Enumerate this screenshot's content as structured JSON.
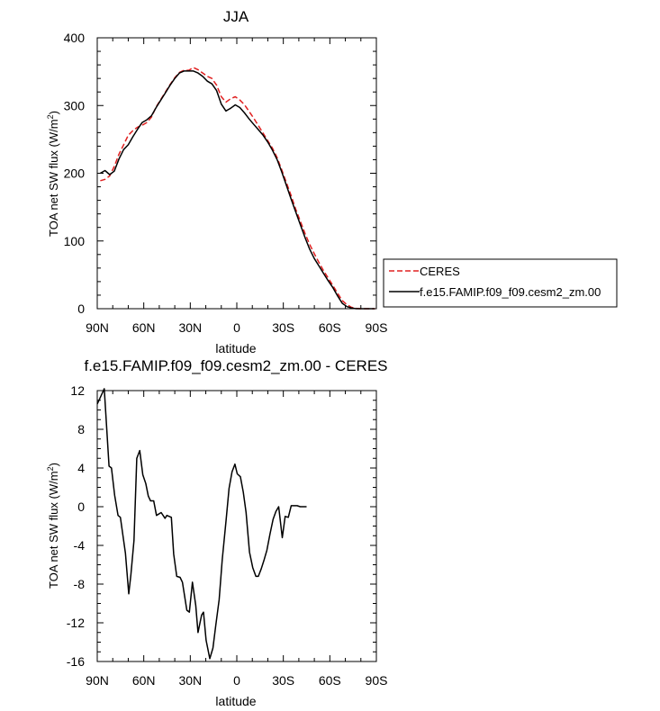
{
  "chart_data": [
    {
      "type": "line",
      "title": "JJA",
      "xlabel": "latitude",
      "ylabel_main": "TOA net SW flux (W/m",
      "ylabel_sup": "2",
      "ylabel_tail": ")",
      "xlim": [
        90,
        -90
      ],
      "ylim": [
        0,
        400
      ],
      "x_ticks": [
        {
          "v": 90,
          "label": "90N"
        },
        {
          "v": 60,
          "label": "60N"
        },
        {
          "v": 30,
          "label": "30N"
        },
        {
          "v": 0,
          "label": "0"
        },
        {
          "v": -30,
          "label": "30S"
        },
        {
          "v": -60,
          "label": "60S"
        },
        {
          "v": -90,
          "label": "90S"
        }
      ],
      "y_ticks": [
        {
          "v": 0,
          "label": "0"
        },
        {
          "v": 100,
          "label": "100"
        },
        {
          "v": 200,
          "label": "200"
        },
        {
          "v": 300,
          "label": "300"
        },
        {
          "v": 400,
          "label": "400"
        }
      ],
      "legend_position": "right-of-plot",
      "series": [
        {
          "name": "CERES",
          "color": "#e02020",
          "dash": "dashed",
          "points": [
            [
              88,
              189
            ],
            [
              85,
              191
            ],
            [
              82,
              196
            ],
            [
              79,
              210
            ],
            [
              76,
              228
            ],
            [
              73,
              242
            ],
            [
              70,
              256
            ],
            [
              67,
              263
            ],
            [
              64,
              268
            ],
            [
              61,
              271
            ],
            [
              58,
              275
            ],
            [
              55,
              283
            ],
            [
              52,
              298
            ],
            [
              49,
              309
            ],
            [
              46,
              320
            ],
            [
              43,
              331
            ],
            [
              40,
              341
            ],
            [
              37,
              349
            ],
            [
              34,
              352
            ],
            [
              31,
              352
            ],
            [
              28,
              356
            ],
            [
              25,
              353
            ],
            [
              22,
              348
            ],
            [
              19,
              343
            ],
            [
              16,
              340
            ],
            [
              13,
              330
            ],
            [
              10,
              313
            ],
            [
              7,
              305
            ],
            [
              4,
              310
            ],
            [
              1,
              313
            ],
            [
              -2,
              308
            ],
            [
              -5,
              301
            ],
            [
              -8,
              291
            ],
            [
              -11,
              281
            ],
            [
              -14,
              270
            ],
            [
              -17,
              259
            ],
            [
              -20,
              248
            ],
            [
              -23,
              237
            ],
            [
              -26,
              223
            ],
            [
              -29,
              205
            ],
            [
              -32,
              186
            ],
            [
              -35,
              167
            ],
            [
              -38,
              147
            ],
            [
              -41,
              129
            ],
            [
              -44,
              111
            ],
            [
              -47,
              95
            ],
            [
              -50,
              81
            ],
            [
              -53,
              68
            ],
            [
              -56,
              56
            ],
            [
              -59,
              45
            ],
            [
              -62,
              34
            ],
            [
              -65,
              23
            ],
            [
              -68,
              12
            ],
            [
              -71,
              6
            ],
            [
              -74,
              2
            ],
            [
              -77,
              0.5
            ],
            [
              -80,
              0
            ],
            [
              -83,
              0
            ],
            [
              -86,
              0
            ],
            [
              -89,
              0
            ]
          ]
        },
        {
          "name": "f.e15.FAMIP.f09_f09.cesm2_zm.00",
          "color": "#000000",
          "dash": "solid",
          "points": [
            [
              88,
              200
            ],
            [
              85,
              204
            ],
            [
              82,
              198
            ],
            [
              79,
              203
            ],
            [
              76,
              221
            ],
            [
              73,
              235
            ],
            [
              70,
              242
            ],
            [
              67,
              254
            ],
            [
              64,
              265
            ],
            [
              61,
              275
            ],
            [
              58,
              279
            ],
            [
              55,
              285
            ],
            [
              52,
              297
            ],
            [
              49,
              308
            ],
            [
              46,
              319
            ],
            [
              43,
              330
            ],
            [
              40,
              340
            ],
            [
              37,
              348
            ],
            [
              34,
              351
            ],
            [
              31,
              351
            ],
            [
              28,
              351
            ],
            [
              25,
              348
            ],
            [
              22,
              343
            ],
            [
              19,
              336
            ],
            [
              16,
              332
            ],
            [
              13,
              322
            ],
            [
              10,
              302
            ],
            [
              7,
              292
            ],
            [
              4,
              296
            ],
            [
              1,
              301
            ],
            [
              -2,
              297
            ],
            [
              -5,
              289
            ],
            [
              -8,
              280
            ],
            [
              -11,
              272
            ],
            [
              -14,
              264
            ],
            [
              -17,
              256
            ],
            [
              -20,
              246
            ],
            [
              -23,
              234
            ],
            [
              -26,
              220
            ],
            [
              -29,
              202
            ],
            [
              -32,
              182
            ],
            [
              -35,
              162
            ],
            [
              -38,
              143
            ],
            [
              -41,
              124
            ],
            [
              -44,
              105
            ],
            [
              -47,
              88
            ],
            [
              -50,
              74
            ],
            [
              -53,
              63
            ],
            [
              -56,
              52
            ],
            [
              -59,
              41
            ],
            [
              -62,
              31
            ],
            [
              -65,
              19
            ],
            [
              -68,
              8
            ],
            [
              -71,
              3
            ],
            [
              -74,
              1
            ],
            [
              -77,
              0
            ],
            [
              -80,
              0
            ],
            [
              -83,
              0
            ],
            [
              -86,
              0
            ],
            [
              -89,
              0
            ]
          ]
        }
      ]
    },
    {
      "type": "line",
      "title": "f.e15.FAMIP.f09_f09.cesm2_zm.00 - CERES",
      "xlabel": "latitude",
      "ylabel_main": "TOA net SW flux (W/m",
      "ylabel_sup": "2",
      "ylabel_tail": ")",
      "xlim": [
        90,
        -90
      ],
      "ylim": [
        -16,
        12
      ],
      "x_ticks": [
        {
          "v": 90,
          "label": "90N"
        },
        {
          "v": 60,
          "label": "60N"
        },
        {
          "v": 30,
          "label": "30N"
        },
        {
          "v": 0,
          "label": "0"
        },
        {
          "v": -30,
          "label": "30S"
        },
        {
          "v": -60,
          "label": "60S"
        },
        {
          "v": -90,
          "label": "90S"
        }
      ],
      "y_ticks": [
        {
          "v": -16,
          "label": "-16"
        },
        {
          "v": -12,
          "label": "-12"
        },
        {
          "v": -8,
          "label": "-8"
        },
        {
          "v": -4,
          "label": "-4"
        },
        {
          "v": 0,
          "label": "0"
        },
        {
          "v": 4,
          "label": "4"
        },
        {
          "v": 8,
          "label": "8"
        },
        {
          "v": 12,
          "label": "12"
        }
      ],
      "series": [
        {
          "name": "",
          "color": "#000000",
          "dash": "solid",
          "points": [
            [
              90,
              10.6
            ],
            [
              85.5,
              12.2
            ],
            [
              82.4,
              4.2
            ],
            [
              80.8,
              4.0
            ],
            [
              78.8,
              1.2
            ],
            [
              76.6,
              -0.9
            ],
            [
              75.1,
              -1.1
            ],
            [
              71.8,
              -4.8
            ],
            [
              69.7,
              -9.0
            ],
            [
              68.3,
              -7.0
            ],
            [
              66.3,
              -3.5
            ],
            [
              64.5,
              5.0
            ],
            [
              62.6,
              5.8
            ],
            [
              60.6,
              3.3
            ],
            [
              58.7,
              2.4
            ],
            [
              57.1,
              1.1
            ],
            [
              55.6,
              0.6
            ],
            [
              53.6,
              0.6
            ],
            [
              51.8,
              -0.9
            ],
            [
              48.8,
              -0.6
            ],
            [
              46.3,
              -1.2
            ],
            [
              45.1,
              -0.9
            ],
            [
              42.2,
              -1.1
            ],
            [
              40.7,
              -4.9
            ],
            [
              38.7,
              -7.2
            ],
            [
              36.6,
              -7.3
            ],
            [
              35.1,
              -7.8
            ],
            [
              32.2,
              -10.7
            ],
            [
              30.6,
              -10.9
            ],
            [
              28.6,
              -7.8
            ],
            [
              26.5,
              -10.2
            ],
            [
              25.0,
              -13.0
            ],
            [
              22.7,
              -11.2
            ],
            [
              21.5,
              -10.9
            ],
            [
              19.8,
              -13.8
            ],
            [
              17.4,
              -15.7
            ],
            [
              15.4,
              -14.6
            ],
            [
              13.6,
              -12.3
            ],
            [
              11.4,
              -9.6
            ],
            [
              9.4,
              -5.5
            ],
            [
              6.9,
              -1.4
            ],
            [
              5.0,
              1.9
            ],
            [
              3.1,
              3.6
            ],
            [
              1.2,
              4.4
            ],
            [
              -0.3,
              3.4
            ],
            [
              -2.3,
              3.1
            ],
            [
              -4.2,
              1.5
            ],
            [
              -6.0,
              -0.6
            ],
            [
              -8.2,
              -4.7
            ],
            [
              -10.3,
              -6.3
            ],
            [
              -12.3,
              -7.2
            ],
            [
              -13.9,
              -7.2
            ],
            [
              -15.8,
              -6.4
            ],
            [
              -17.6,
              -5.5
            ],
            [
              -19.4,
              -4.5
            ],
            [
              -21.4,
              -2.8
            ],
            [
              -23.4,
              -1.3
            ],
            [
              -25.2,
              -0.5
            ],
            [
              -27.0,
              0.0
            ],
            [
              -29.3,
              -3.2
            ],
            [
              -31.2,
              -1.0
            ],
            [
              -33.2,
              -1.1
            ],
            [
              -35.1,
              0.1
            ],
            [
              -37.1,
              0.1
            ],
            [
              -38.9,
              0.1
            ],
            [
              -40.9,
              0.0
            ],
            [
              -43.1,
              0.0
            ],
            [
              -45,
              0.0
            ]
          ]
        }
      ]
    }
  ]
}
